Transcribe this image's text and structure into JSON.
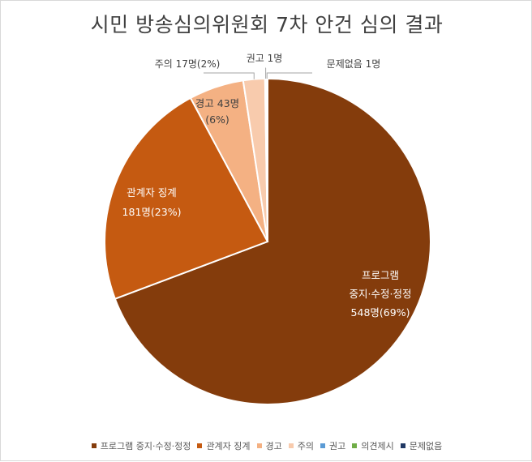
{
  "chart_data": {
    "type": "pie",
    "title": "시민 방송심의위원회 7차 안건 심의 결과",
    "categories": [
      "프로그램 중지·수정·정정",
      "관계자 징계",
      "경고",
      "주의",
      "권고",
      "의견제시",
      "문제없음"
    ],
    "values": [
      548,
      181,
      43,
      17,
      1,
      0,
      1
    ],
    "colors": [
      "#843c0c",
      "#c55a11",
      "#f4b183",
      "#f8cbad",
      "#5b9bd5",
      "#70ad47",
      "#203864"
    ],
    "data_labels": [
      [
        "프로그램",
        "중지·수정·정정",
        "548명(69%)"
      ],
      [
        "관계자 징계",
        "181명(23%)"
      ],
      [
        "경고 43명",
        "(6%)"
      ],
      [
        "주의 17명(2%)"
      ],
      [
        "권고 1명"
      ],
      [],
      [
        "문제없음 1명"
      ]
    ],
    "legend_position": "bottom"
  }
}
